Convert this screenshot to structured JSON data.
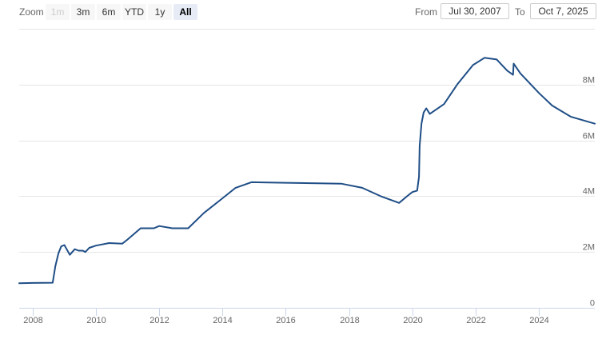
{
  "toolbar": {
    "zoom_label": "Zoom",
    "buttons": [
      {
        "label": "1m",
        "state": "disabled"
      },
      {
        "label": "3m",
        "state": "normal"
      },
      {
        "label": "6m",
        "state": "normal"
      },
      {
        "label": "YTD",
        "state": "normal"
      },
      {
        "label": "1y",
        "state": "normal"
      },
      {
        "label": "All",
        "state": "selected"
      }
    ],
    "from_label": "From",
    "from_value": "Jul 30, 2007",
    "to_label": "To",
    "to_value": "Oct 7, 2025"
  },
  "colors": {
    "series": "#1f4e86",
    "grid": "#e6e6e6",
    "selected_button": "#e6ebf5"
  },
  "chart_data": {
    "type": "line",
    "title": "",
    "xlabel": "",
    "ylabel": "",
    "xlim": [
      "2007-07-30",
      "2025-10-07"
    ],
    "ylim": [
      0,
      10000000
    ],
    "grid": true,
    "legend": "none",
    "x_ticks": [
      "2008",
      "2010",
      "2012",
      "2014",
      "2016",
      "2018",
      "2020",
      "2022",
      "2024"
    ],
    "y_ticks": [
      {
        "value": 0,
        "label": "0"
      },
      {
        "value": 2000000,
        "label": "2M"
      },
      {
        "value": 4000000,
        "label": "4M"
      },
      {
        "value": 6000000,
        "label": "6M"
      },
      {
        "value": 8000000,
        "label": "8M"
      },
      {
        "value": 10000000,
        "label": ""
      }
    ],
    "series": [
      {
        "points": [
          [
            "2007-07-30",
            880000
          ],
          [
            "2008-01-01",
            890000
          ],
          [
            "2008-08-20",
            900000
          ],
          [
            "2008-09-20",
            1500000
          ],
          [
            "2008-10-25",
            1950000
          ],
          [
            "2008-11-25",
            2200000
          ],
          [
            "2009-01-01",
            2250000
          ],
          [
            "2009-03-05",
            1900000
          ],
          [
            "2009-05-01",
            2100000
          ],
          [
            "2009-06-15",
            2050000
          ],
          [
            "2009-08-01",
            2050000
          ],
          [
            "2009-09-01",
            2000000
          ],
          [
            "2009-10-15",
            2150000
          ],
          [
            "2010-01-01",
            2230000
          ],
          [
            "2010-06-01",
            2320000
          ],
          [
            "2010-11-01",
            2300000
          ],
          [
            "2011-01-01",
            2450000
          ],
          [
            "2011-06-01",
            2850000
          ],
          [
            "2011-11-01",
            2850000
          ],
          [
            "2012-01-01",
            2930000
          ],
          [
            "2012-06-01",
            2850000
          ],
          [
            "2012-12-01",
            2850000
          ],
          [
            "2013-06-01",
            3400000
          ],
          [
            "2013-12-01",
            3850000
          ],
          [
            "2014-06-01",
            4300000
          ],
          [
            "2014-12-01",
            4500000
          ],
          [
            "2015-06-01",
            4490000
          ],
          [
            "2016-01-01",
            4480000
          ],
          [
            "2017-01-01",
            4460000
          ],
          [
            "2017-10-01",
            4450000
          ],
          [
            "2018-06-01",
            4300000
          ],
          [
            "2019-01-01",
            4000000
          ],
          [
            "2019-08-01",
            3760000
          ],
          [
            "2019-11-01",
            4000000
          ],
          [
            "2020-01-01",
            4150000
          ],
          [
            "2020-02-26",
            4200000
          ],
          [
            "2020-03-18",
            4700000
          ],
          [
            "2020-03-25",
            5800000
          ],
          [
            "2020-04-15",
            6600000
          ],
          [
            "2020-05-10",
            7000000
          ],
          [
            "2020-06-10",
            7150000
          ],
          [
            "2020-07-20",
            6950000
          ],
          [
            "2021-01-01",
            7300000
          ],
          [
            "2021-06-01",
            8000000
          ],
          [
            "2021-12-01",
            8700000
          ],
          [
            "2022-04-13",
            8960000
          ],
          [
            "2022-09-01",
            8900000
          ],
          [
            "2023-01-01",
            8500000
          ],
          [
            "2023-03-08",
            8350000
          ],
          [
            "2023-03-15",
            8750000
          ],
          [
            "2023-06-01",
            8400000
          ],
          [
            "2024-01-01",
            7700000
          ],
          [
            "2024-06-01",
            7250000
          ],
          [
            "2025-01-01",
            6850000
          ],
          [
            "2025-10-07",
            6600000
          ]
        ]
      }
    ]
  }
}
